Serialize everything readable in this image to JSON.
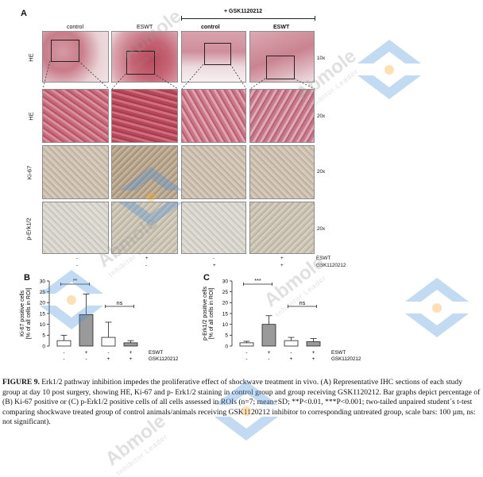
{
  "figure": {
    "panel_a_label": "A",
    "panel_b_label": "B",
    "panel_c_label": "C",
    "gsk_header": "+ GSK1120212",
    "column_headers": [
      "control",
      "ESWT",
      "control",
      "ESWT"
    ],
    "row_labels": [
      "HE",
      "HE",
      "Ki-67",
      "p-Erk1/2"
    ],
    "magnifications": [
      "10x",
      "20x",
      "20x",
      "20x"
    ],
    "eswt_row_label": "ESWT",
    "gsk_row_label": "GSK1120212",
    "eswt_marks": [
      "-",
      "+",
      "-",
      "+"
    ],
    "gsk_marks": [
      "-",
      "-",
      "+",
      "+"
    ]
  },
  "chart_data": [
    {
      "type": "bar",
      "panel": "B",
      "ylabel": "Ki-67 positive cells",
      "ylabel2": "[% of all cells in ROI]",
      "ylim": [
        0,
        30
      ],
      "yticks": [
        "0",
        "5",
        "10",
        "15",
        "20",
        "25",
        "30"
      ],
      "categories": [
        "control",
        "ESWT",
        "GSK1120212",
        "ESWT + GSK1120212"
      ],
      "values": [
        2.5,
        14.5,
        4,
        1.5
      ],
      "errors": [
        2.5,
        9.5,
        7,
        1
      ],
      "colors": [
        "#ffffff",
        "#9a9a9a",
        "#ffffff",
        "#9a9a9a"
      ],
      "eswt_marks": [
        "-",
        "+",
        "-",
        "+"
      ],
      "gsk_marks": [
        "-",
        "-",
        "+",
        "+"
      ],
      "eswt_label": "ESWT",
      "gsk_label": "GSK1120212",
      "significance": [
        {
          "pair": [
            0,
            1
          ],
          "label": "**"
        },
        {
          "pair": [
            2,
            3
          ],
          "label": "ns"
        }
      ]
    },
    {
      "type": "bar",
      "panel": "C",
      "ylabel": "p-Erk1/2 positive cells",
      "ylabel2": "[% of all cells in ROI]",
      "ylim": [
        0,
        30
      ],
      "yticks": [
        "0",
        "5",
        "10",
        "15",
        "20",
        "25",
        "30"
      ],
      "categories": [
        "control",
        "ESWT",
        "GSK1120212",
        "ESWT + GSK1120212"
      ],
      "values": [
        1.5,
        10,
        2.5,
        2
      ],
      "errors": [
        0.7,
        4,
        1.5,
        1.5
      ],
      "colors": [
        "#ffffff",
        "#9a9a9a",
        "#ffffff",
        "#9a9a9a"
      ],
      "eswt_marks": [
        "-",
        "+",
        "-",
        "+"
      ],
      "gsk_marks": [
        "-",
        "-",
        "+",
        "+"
      ],
      "eswt_label": "ESWT",
      "gsk_label": "GSK1120212",
      "significance": [
        {
          "pair": [
            0,
            1
          ],
          "label": "***"
        },
        {
          "pair": [
            2,
            3
          ],
          "label": "ns"
        }
      ]
    }
  ],
  "caption": {
    "title": "FIGURE 9.",
    "text": " Erk1/2 pathway inhibition impedes the proliferative effect of shockwave treatment in vivo. (A) Representative IHC sections of each study group at day 10 post surgery, showing HE, Ki-67 and p- Erk1/2 staining in control group and group receiving GSK1120212. Bar graphs depict percentage of (B) Ki-67 positive or (C) p-Erk1/2 positive cells of all cells assessed in ROIs (n=7; mean+SD; **P<0.01, ***P<0.001; two-tailed unpaired student´s t-test comparing shockwave treated group of control animals/animals receiving GSK1120212 inhibitor to corresponding untreated group, scale bars: 100 µm, ns: not significant)."
  },
  "watermark": {
    "text": "Abmole",
    "subtext": "Inhibitor Leader",
    "colors": {
      "logo_blue": "#4a90d9",
      "logo_orange": "#f5a623",
      "text_gray": "#9a9a9a"
    }
  }
}
